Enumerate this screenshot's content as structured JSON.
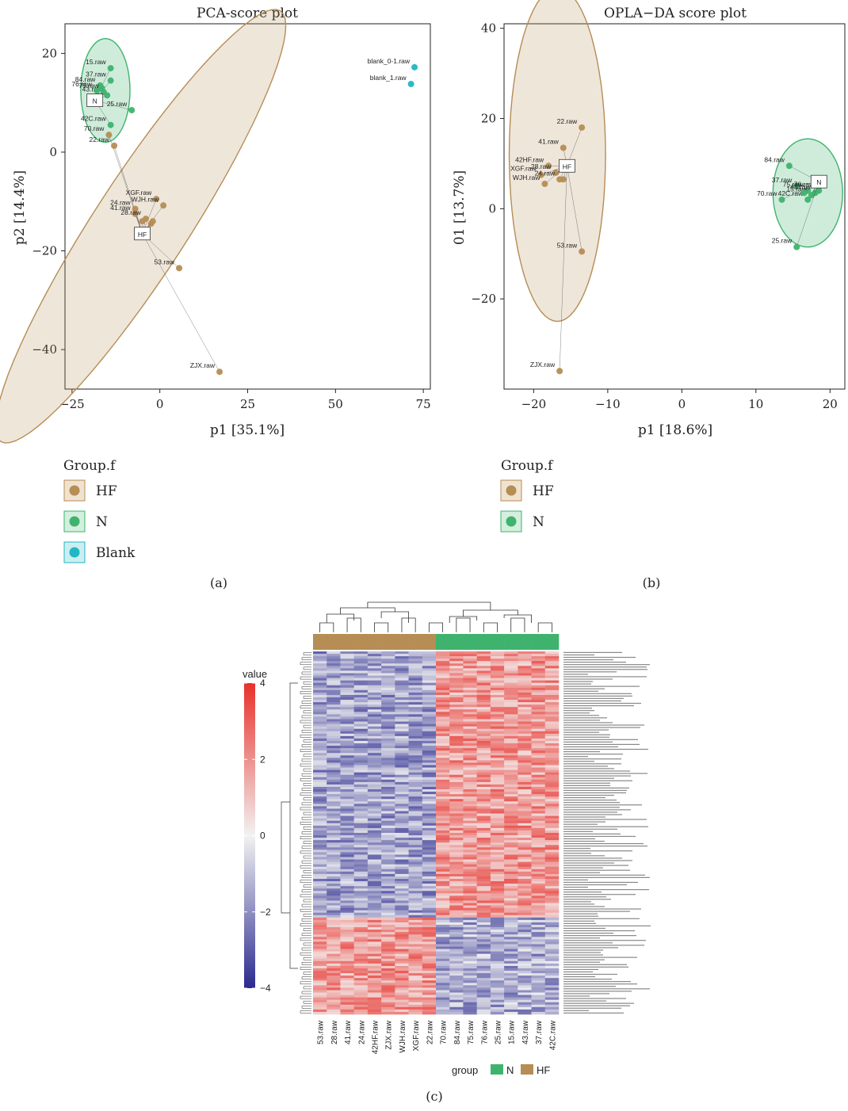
{
  "colors": {
    "HF": "#b58d55",
    "N": "#3fb36e",
    "Blank": "#20b7c4",
    "HF_ellipse_fill": "rgba(181,141,85,0.22)",
    "HF_ellipse_stroke": "#b58d55",
    "N_ellipse_fill": "rgba(63,179,110,0.25)",
    "N_ellipse_stroke": "#3fb36e",
    "heat_low": "#2b2a8f",
    "heat_mid": "#f2f2f2",
    "heat_high": "#e8302a"
  },
  "captions": {
    "a": "(a)",
    "b": "(b)",
    "c": "(c)"
  },
  "chart_data": [
    {
      "type": "scatter",
      "title": "PCA-score plot",
      "xlabel": "p1 [35.1%]",
      "ylabel": "p2 [14.4%]",
      "xlim": [
        -27,
        77
      ],
      "ylim": [
        -48,
        26
      ],
      "xticks": [
        -25,
        0,
        25,
        50,
        75
      ],
      "yticks": [
        20,
        0,
        -20,
        -40
      ],
      "legend": {
        "title": "Group.f",
        "entries": [
          {
            "name": "HF",
            "color_key": "HF"
          },
          {
            "name": "N",
            "color_key": "N"
          },
          {
            "name": "Blank",
            "color_key": "Blank"
          }
        ]
      },
      "series": [
        {
          "name": "HF",
          "color_key": "HF",
          "points": [
            {
              "label": "70.raw",
              "x": -14.5,
              "y": 3.5
            },
            {
              "label": "22.raw",
              "x": -13,
              "y": 1.3
            },
            {
              "label": "24.raw",
              "x": -7,
              "y": -11.5
            },
            {
              "label": "41.raw",
              "x": -7,
              "y": -12.5
            },
            {
              "label": "XGF.raw",
              "x": -1,
              "y": -9.5
            },
            {
              "label": "WJH.raw",
              "x": 1,
              "y": -10.8
            },
            {
              "label": "28.raw",
              "x": -4,
              "y": -13.5
            },
            {
              "label": "",
              "x": -5,
              "y": -14
            },
            {
              "label": "",
              "x": -2.5,
              "y": -14.5
            },
            {
              "label": "",
              "x": -2,
              "y": -14
            },
            {
              "label": "53.raw",
              "x": 5.5,
              "y": -23.5
            },
            {
              "label": "ZJX.raw",
              "x": 17,
              "y": -44.5
            }
          ],
          "centroid": {
            "label": "HF",
            "x": -5,
            "y": -16.5
          },
          "ellipse": {
            "cx": -5.5,
            "cy": -15,
            "rx": 52,
            "ry": 9.5,
            "angle": -57
          }
        },
        {
          "name": "N",
          "color_key": "N",
          "points": [
            {
              "label": "15.raw",
              "x": -14,
              "y": 17
            },
            {
              "label": "37.raw",
              "x": -14,
              "y": 14.5
            },
            {
              "label": "84.raw",
              "x": -17,
              "y": 13.5
            },
            {
              "label": "43.raw",
              "x": -15,
              "y": 11.5
            },
            {
              "label": "76.raw",
              "x": -18,
              "y": 12.5
            },
            {
              "label": "75.raw",
              "x": -16,
              "y": 12.2
            },
            {
              "label": "",
              "x": -16.5,
              "y": 13
            },
            {
              "label": "25.raw",
              "x": -8,
              "y": 8.5
            },
            {
              "label": "42C.raw",
              "x": -14,
              "y": 5.5
            }
          ],
          "centroid": {
            "label": "N",
            "x": -18.5,
            "y": 10.5
          },
          "ellipse": {
            "cx": -15.5,
            "cy": 12.5,
            "rx": 7,
            "ry": 10.5,
            "angle": 0
          }
        },
        {
          "name": "Blank",
          "color_key": "Blank",
          "points": [
            {
              "label": "blank_0-1.raw",
              "x": 72.5,
              "y": 17.2
            },
            {
              "label": "blank_1.raw",
              "x": 71.5,
              "y": 13.8
            }
          ]
        }
      ]
    },
    {
      "type": "scatter",
      "title": "OPLA−DA score plot",
      "xlabel": "p1 [18.6%]",
      "ylabel": "01 [13.7%]",
      "xlim": [
        -24,
        22
      ],
      "ylim": [
        -40,
        41
      ],
      "xticks": [
        -20,
        -10,
        0,
        10,
        20
      ],
      "yticks": [
        40,
        20,
        0,
        -20
      ],
      "legend": {
        "title": "Group.f",
        "entries": [
          {
            "name": "HF",
            "color_key": "HF"
          },
          {
            "name": "N",
            "color_key": "N"
          }
        ]
      },
      "series": [
        {
          "name": "HF",
          "color_key": "HF",
          "points": [
            {
              "label": "22.raw",
              "x": -13.5,
              "y": 18
            },
            {
              "label": "41.raw",
              "x": -16,
              "y": 13.5
            },
            {
              "label": "42HF.raw",
              "x": -18,
              "y": 9.5
            },
            {
              "label": "28.raw",
              "x": -17,
              "y": 8
            },
            {
              "label": "XGF.raw",
              "x": -19,
              "y": 7.5
            },
            {
              "label": "WJH.raw",
              "x": -18.5,
              "y": 5.5
            },
            {
              "label": "24.raw",
              "x": -16.5,
              "y": 6.5
            },
            {
              "label": "",
              "x": -16,
              "y": 6.5
            },
            {
              "label": "53.raw",
              "x": -13.5,
              "y": -9.5
            },
            {
              "label": "ZJX.raw",
              "x": -16.5,
              "y": -36
            }
          ],
          "centroid": {
            "label": "HF",
            "x": -15.5,
            "y": 9.5
          },
          "ellipse": {
            "cx": -16.8,
            "cy": 12,
            "rx": 6.5,
            "ry": 37,
            "angle": 0
          }
        },
        {
          "name": "N",
          "color_key": "N",
          "points": [
            {
              "label": "84.raw",
              "x": 14.5,
              "y": 9.5
            },
            {
              "label": "37.raw",
              "x": 15.5,
              "y": 5
            },
            {
              "label": "75.raw",
              "x": 17,
              "y": 4
            },
            {
              "label": "76.raw",
              "x": 18.5,
              "y": 4
            },
            {
              "label": "70.raw",
              "x": 13.5,
              "y": 2
            },
            {
              "label": "42C.raw",
              "x": 17,
              "y": 2
            },
            {
              "label": "43.raw",
              "x": 18,
              "y": 3.5
            },
            {
              "label": "15.raw",
              "x": 17.5,
              "y": 3
            },
            {
              "label": "",
              "x": 16.5,
              "y": 3.5
            },
            {
              "label": "25.raw",
              "x": 15.5,
              "y": -8.5
            }
          ],
          "centroid": {
            "label": "N",
            "x": 18.5,
            "y": 6
          },
          "ellipse": {
            "cx": 17,
            "cy": 3.5,
            "rx": 4.7,
            "ry": 12,
            "angle": 0
          }
        }
      ]
    },
    {
      "type": "heatmap",
      "columns": [
        "53.raw",
        "28.raw",
        "41.raw",
        "24.raw",
        "42HF.raw",
        "ZJX.raw",
        "WJH.raw",
        "XGF.raw",
        "22.raw",
        "70.raw",
        "84.raw",
        "75.raw",
        "76.raw",
        "25.raw",
        "15.raw",
        "43.raw",
        "37.raw",
        "42C.raw"
      ],
      "column_groups": [
        "HF",
        "HF",
        "HF",
        "HF",
        "HF",
        "HF",
        "HF",
        "HF",
        "HF",
        "N",
        "N",
        "N",
        "N",
        "N",
        "N",
        "N",
        "N",
        "N"
      ],
      "value_range": [
        -4,
        4
      ],
      "value_ticks": [
        4,
        2,
        0,
        -2,
        -4
      ],
      "value_title": "value",
      "group_legend": {
        "title": "group",
        "entries": [
          "N",
          "HF"
        ]
      },
      "n_rows": 150,
      "row_blocks": [
        {
          "rows": 110,
          "HF_mean": -1.6,
          "N_mean": 1.8
        },
        {
          "rows": 40,
          "HF_mean": 1.8,
          "N_mean": -1.4
        }
      ]
    }
  ]
}
